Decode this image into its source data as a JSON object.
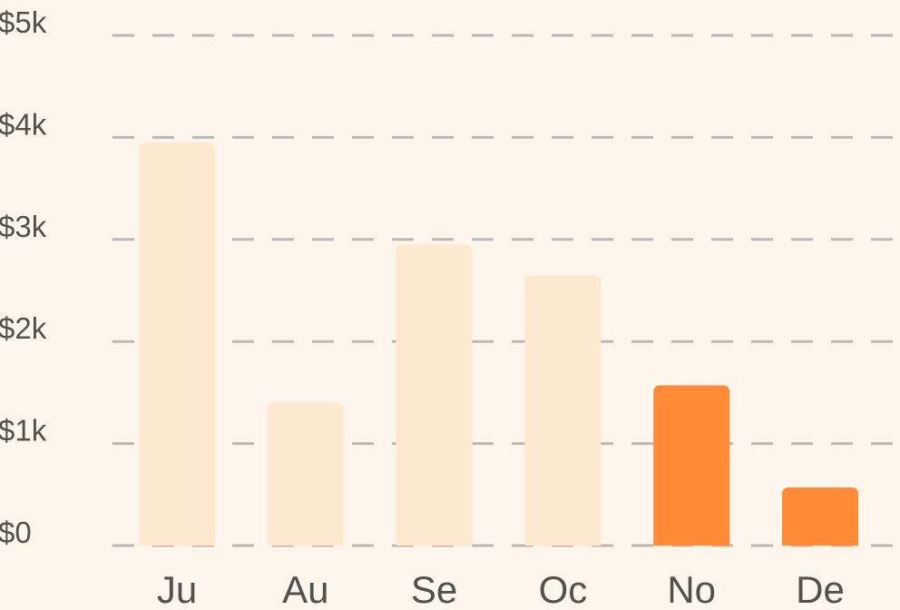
{
  "chart_data": {
    "type": "bar",
    "categories": [
      "Ju",
      "Au",
      "Se",
      "Oc",
      "No",
      "De"
    ],
    "values": [
      3950,
      1400,
      2950,
      2650,
      1570,
      570
    ],
    "highlighted": [
      false,
      false,
      false,
      false,
      true,
      true
    ],
    "ylim": [
      0,
      5000
    ],
    "y_ticks": [
      {
        "value": 0,
        "label": "$0"
      },
      {
        "value": 1000,
        "label": "$1k"
      },
      {
        "value": 2000,
        "label": "$2k"
      },
      {
        "value": 3000,
        "label": "$3k"
      },
      {
        "value": 4000,
        "label": "$4k"
      },
      {
        "value": 5000,
        "label": "$5k"
      }
    ],
    "grid": true,
    "legend": "none",
    "colors": {
      "background": "#fef5ec",
      "bar_muted": "#fde8d0",
      "bar_highlight": "#ff8b38",
      "grid": "#bdb8b3",
      "text": "#54504c"
    }
  }
}
